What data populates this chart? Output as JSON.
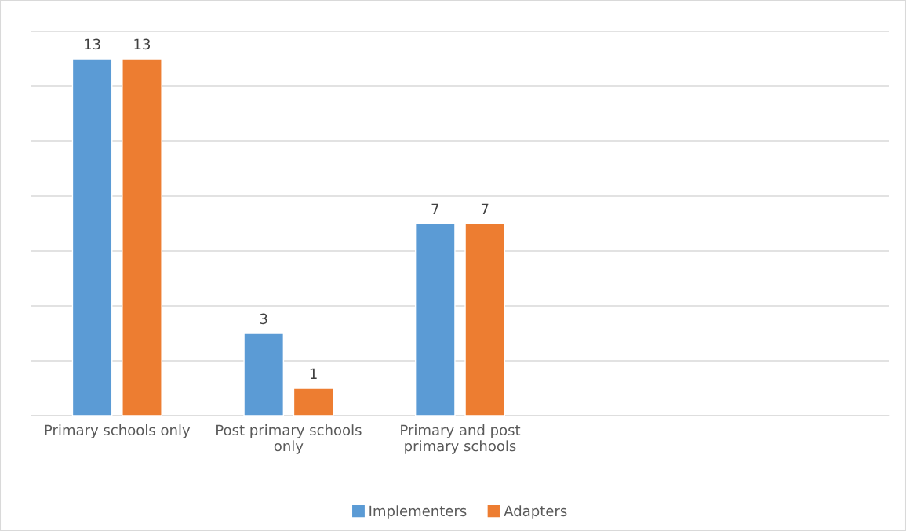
{
  "chart_data": {
    "type": "bar",
    "categories": [
      "Primary schools only",
      "Post primary schools only",
      "Primary and post primary schools",
      null,
      null
    ],
    "series": [
      {
        "name": "Implementers",
        "color": "#5b9bd5",
        "values": [
          13,
          3,
          7,
          null,
          null
        ]
      },
      {
        "name": "Adapters",
        "color": "#ed7d31",
        "values": [
          13,
          1,
          7,
          null,
          null
        ]
      }
    ],
    "ylim": [
      0,
      14
    ],
    "yticks": [
      {
        "value": 0,
        "label": null
      },
      {
        "value": 2,
        "label": null
      },
      {
        "value": 4,
        "label": null
      },
      {
        "value": 6,
        "label": null
      },
      {
        "value": 8,
        "label": null
      },
      {
        "value": 10,
        "label": null
      },
      {
        "value": 12,
        "label": null
      },
      {
        "value": 14,
        "label": null
      }
    ],
    "tick_labels": "x",
    "grid": "y",
    "legend": "bottom",
    "data_labels": true
  }
}
